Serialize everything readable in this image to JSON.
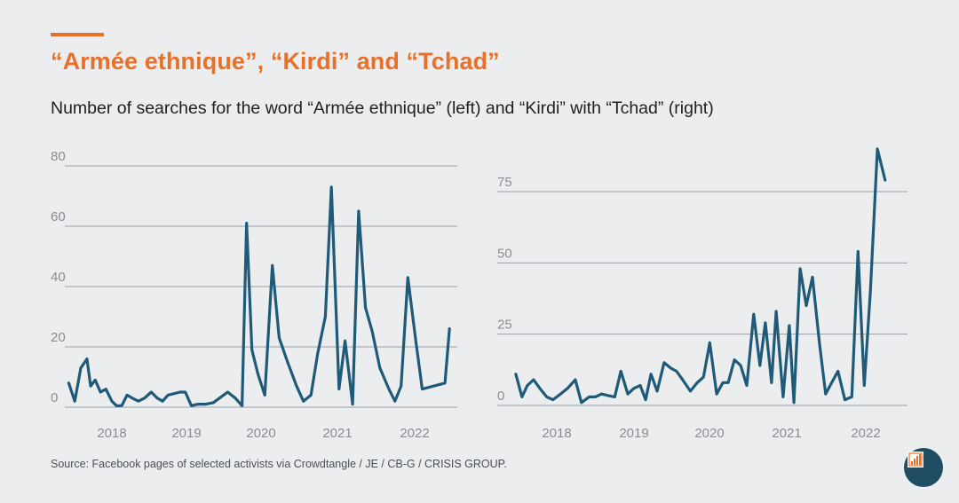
{
  "header": {
    "title": "“Armée ethnique”, “Kirdi” and “Tchad”",
    "subtitle": "Number of searches for the word “Armée ethnique” (left) and “Kirdi” with “Tchad” (right)"
  },
  "footer": {
    "source": "Source: Facebook pages of selected activists via Crowdtangle / JE / CB-G / CRISIS GROUP."
  },
  "colors": {
    "accent": "#e8712a",
    "line": "#1f5a78",
    "grid": "#9aa0a6",
    "axis_text": "#8a8d92"
  },
  "logo": {
    "icon": "crisis-group-logo-icon"
  },
  "chart_data": [
    {
      "type": "line",
      "title": "",
      "series_name": "Armée ethnique",
      "xlabel": "",
      "ylabel": "",
      "xlim": [
        2017.4,
        2022.6
      ],
      "ylim": [
        0,
        80
      ],
      "yticks": [
        0,
        20,
        40,
        60,
        80
      ],
      "xticks": [
        2018,
        2019,
        2020,
        2021,
        2022
      ],
      "grid": true,
      "points": [
        [
          2017.43,
          8
        ],
        [
          2017.51,
          2
        ],
        [
          2017.59,
          13
        ],
        [
          2017.67,
          16
        ],
        [
          2017.72,
          7
        ],
        [
          2017.78,
          9
        ],
        [
          2017.85,
          5
        ],
        [
          2017.92,
          6
        ],
        [
          2018.0,
          2
        ],
        [
          2018.06,
          0.5
        ],
        [
          2018.13,
          0.5
        ],
        [
          2018.2,
          4
        ],
        [
          2018.27,
          3
        ],
        [
          2018.35,
          2
        ],
        [
          2018.43,
          3
        ],
        [
          2018.52,
          5
        ],
        [
          2018.6,
          3
        ],
        [
          2018.67,
          2
        ],
        [
          2018.74,
          4
        ],
        [
          2018.82,
          4.5
        ],
        [
          2018.9,
          5
        ],
        [
          2018.97,
          5
        ],
        [
          2019.05,
          0.5
        ],
        [
          2019.14,
          1
        ],
        [
          2019.24,
          1
        ],
        [
          2019.34,
          1.5
        ],
        [
          2019.53,
          5
        ],
        [
          2019.63,
          3
        ],
        [
          2019.72,
          0.5
        ],
        [
          2019.78,
          61
        ],
        [
          2019.85,
          19
        ],
        [
          2019.93,
          11
        ],
        [
          2020.02,
          4
        ],
        [
          2020.12,
          47
        ],
        [
          2020.21,
          23
        ],
        [
          2020.32,
          15
        ],
        [
          2020.44,
          7
        ],
        [
          2020.53,
          2
        ],
        [
          2020.63,
          4
        ],
        [
          2020.72,
          18
        ],
        [
          2020.82,
          30
        ],
        [
          2020.9,
          73
        ],
        [
          2021.0,
          6
        ],
        [
          2021.08,
          22
        ],
        [
          2021.18,
          1
        ],
        [
          2021.26,
          65
        ],
        [
          2021.35,
          33
        ],
        [
          2021.44,
          25
        ],
        [
          2021.54,
          13
        ],
        [
          2021.66,
          6
        ],
        [
          2021.74,
          2
        ],
        [
          2021.82,
          7
        ],
        [
          2021.91,
          43
        ],
        [
          2022.02,
          21
        ],
        [
          2022.1,
          6
        ],
        [
          2022.4,
          8
        ],
        [
          2022.46,
          26
        ]
      ]
    },
    {
      "type": "line",
      "title": "",
      "series_name": "Kirdi + Tchad",
      "xlabel": "",
      "ylabel": "",
      "xlim": [
        2017.4,
        2022.6
      ],
      "ylim": [
        0,
        75
      ],
      "yticks": [
        0,
        25,
        50,
        75
      ],
      "xticks": [
        2018,
        2019,
        2020,
        2021,
        2022
      ],
      "grid": true,
      "points": [
        [
          2017.47,
          11
        ],
        [
          2017.55,
          3
        ],
        [
          2017.62,
          7
        ],
        [
          2017.7,
          9
        ],
        [
          2017.78,
          6
        ],
        [
          2017.87,
          3
        ],
        [
          2017.95,
          2
        ],
        [
          2018.05,
          4
        ],
        [
          2018.14,
          6
        ],
        [
          2018.24,
          9
        ],
        [
          2018.32,
          1
        ],
        [
          2018.42,
          3
        ],
        [
          2018.5,
          3
        ],
        [
          2018.58,
          4
        ],
        [
          2018.66,
          3.5
        ],
        [
          2018.75,
          3
        ],
        [
          2018.83,
          12
        ],
        [
          2018.92,
          4
        ],
        [
          2019.0,
          6
        ],
        [
          2019.08,
          7
        ],
        [
          2019.15,
          2
        ],
        [
          2019.22,
          11
        ],
        [
          2019.3,
          5
        ],
        [
          2019.39,
          15
        ],
        [
          2019.48,
          13
        ],
        [
          2019.55,
          12
        ],
        [
          2019.63,
          9
        ],
        [
          2019.73,
          5
        ],
        [
          2019.82,
          8
        ],
        [
          2019.9,
          10
        ],
        [
          2019.98,
          22
        ],
        [
          2020.07,
          4
        ],
        [
          2020.15,
          8
        ],
        [
          2020.22,
          8
        ],
        [
          2020.3,
          16
        ],
        [
          2020.38,
          14
        ],
        [
          2020.46,
          7
        ],
        [
          2020.55,
          32
        ],
        [
          2020.63,
          14
        ],
        [
          2020.7,
          29
        ],
        [
          2020.78,
          8
        ],
        [
          2020.84,
          33
        ],
        [
          2020.93,
          3
        ],
        [
          2021.01,
          28
        ],
        [
          2021.07,
          1
        ],
        [
          2021.15,
          48
        ],
        [
          2021.23,
          35
        ],
        [
          2021.31,
          45
        ],
        [
          2021.4,
          22
        ],
        [
          2021.48,
          4
        ],
        [
          2021.56,
          8
        ],
        [
          2021.64,
          12
        ],
        [
          2021.73,
          2
        ],
        [
          2021.82,
          3
        ],
        [
          2021.9,
          54
        ],
        [
          2021.98,
          7
        ],
        [
          2022.06,
          40
        ],
        [
          2022.15,
          90
        ],
        [
          2022.25,
          79
        ]
      ]
    }
  ]
}
